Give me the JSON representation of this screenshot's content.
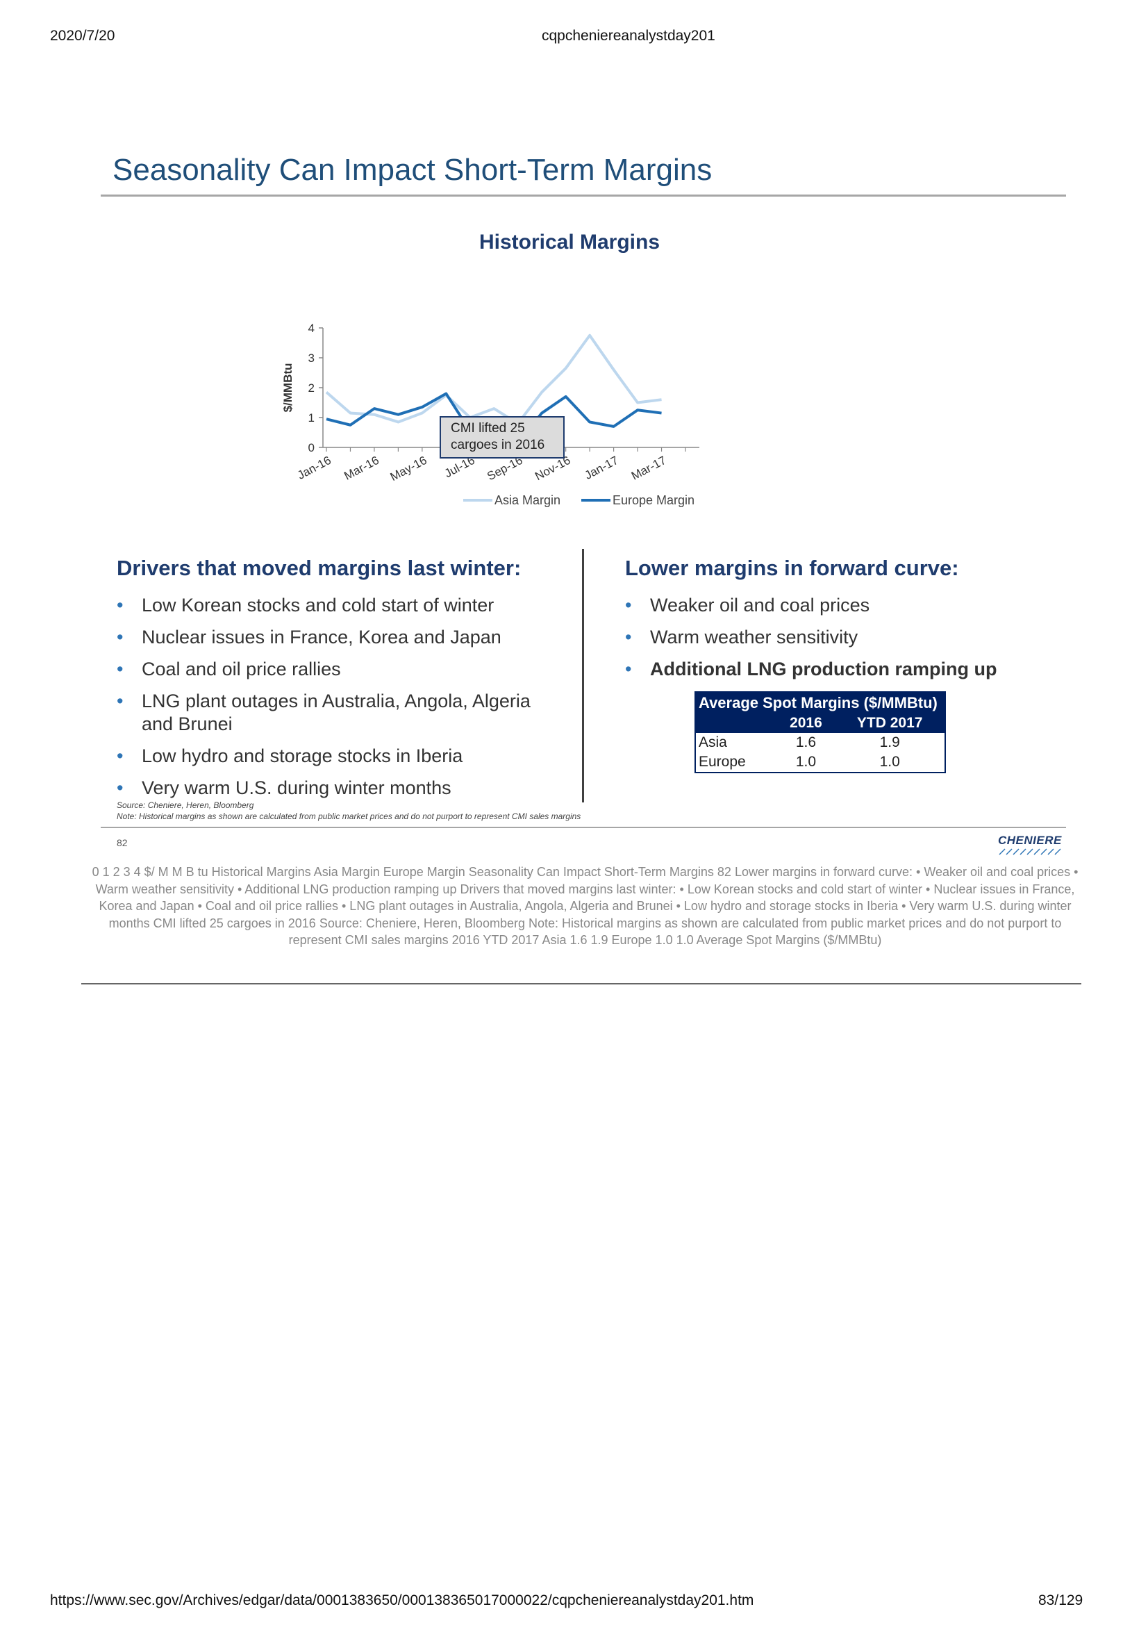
{
  "header": {
    "date": "2020/7/20",
    "doc_title": "cqpcheniereanalystday201"
  },
  "slide": {
    "title": "Seasonality Can Impact Short-Term Margins",
    "left_heading": "Drivers that moved margins last winter:",
    "left_bullets": [
      "Low Korean stocks and cold start of winter",
      "Nuclear issues in France, Korea and Japan",
      "Coal and oil price rallies",
      "LNG plant outages in Australia, Angola, Algeria and Brunei",
      "Low hydro and storage stocks in Iberia",
      "Very warm U.S. during winter months"
    ],
    "right_heading": "Lower margins in forward curve:",
    "right_bullets": [
      {
        "text": "Weaker oil and coal prices",
        "bold": false
      },
      {
        "text": "Warm weather sensitivity",
        "bold": false
      },
      {
        "text": "Additional LNG production ramping up",
        "bold": true
      }
    ],
    "bullet_char": "•",
    "table": {
      "caption": "Average Spot Margins ($/MMBtu)",
      "columns": [
        "",
        "2016",
        "YTD 2017"
      ],
      "rows": [
        {
          "label": "Asia",
          "v2016": "1.6",
          "vytd": "1.9"
        },
        {
          "label": "Europe",
          "v2016": "1.0",
          "vytd": "1.0"
        }
      ]
    },
    "source": "Source: Cheniere, Heren, Bloomberg",
    "note": "Note: Historical margins as shown are calculated from public market prices and do not purport to represent CMI sales margins",
    "page_number": "82",
    "logo_text": "CHENIERE"
  },
  "chart_data": {
    "type": "line",
    "title": "Historical Margins",
    "ylabel": "$/MMBtu",
    "ylim": [
      0,
      4
    ],
    "yticks": [
      0,
      1,
      2,
      3,
      4
    ],
    "x_tick_labels": [
      "Jan-16",
      "Mar-16",
      "May-16",
      "Jul-16",
      "Sep-16",
      "Nov-16",
      "Jan-17",
      "Mar-17"
    ],
    "x": [
      "Jan-16",
      "Feb-16",
      "Mar-16",
      "Apr-16",
      "May-16",
      "Jun-16",
      "Jul-16",
      "Aug-16",
      "Sep-16",
      "Oct-16",
      "Nov-16",
      "Dec-16",
      "Jan-17",
      "Feb-17",
      "Mar-17",
      "Apr-17"
    ],
    "series": [
      {
        "name": "Asia Margin",
        "color": "#bdd7ee",
        "values": [
          1.85,
          1.15,
          1.1,
          0.85,
          1.15,
          1.75,
          1.0,
          1.3,
          0.8,
          1.85,
          2.65,
          3.75,
          2.6,
          1.5,
          1.6,
          null
        ]
      },
      {
        "name": "Europe Margin",
        "color": "#1f6fb5",
        "values": [
          0.95,
          0.75,
          1.3,
          1.1,
          1.35,
          1.8,
          0.55,
          0.2,
          0.15,
          1.15,
          1.7,
          0.85,
          0.7,
          1.25,
          1.15,
          null
        ]
      }
    ],
    "annotation": [
      "CMI lifted 25",
      "cargoes in 2016"
    ],
    "legend_position": "bottom"
  },
  "ocr_text": "0 1 2 3 4 $/ M M B tu Historical Margins Asia Margin Europe Margin Seasonality Can Impact Short-Term Margins 82 Lower margins in forward curve: • Weaker oil and coal prices • Warm weather sensitivity • Additional LNG production ramping up Drivers that moved margins last winter: • Low Korean stocks and cold start of winter • Nuclear issues in France, Korea and Japan • Coal and oil price rallies • LNG plant outages in Australia, Angola, Algeria and Brunei • Low hydro and storage stocks in Iberia • Very warm U.S. during winter months CMI lifted 25 cargoes in 2016 Source: Cheniere, Heren, Bloomberg Note: Historical margins as shown are calculated from public market prices and do not purport to represent CMI sales margins 2016 YTD 2017 Asia 1.6 1.9 Europe 1.0 1.0 Average Spot Margins ($/MMBtu)",
  "footer": {
    "url": "https://www.sec.gov/Archives/edgar/data/0001383650/000138365017000022/cqpcheniereanalystday201.htm",
    "page": "83/129"
  }
}
